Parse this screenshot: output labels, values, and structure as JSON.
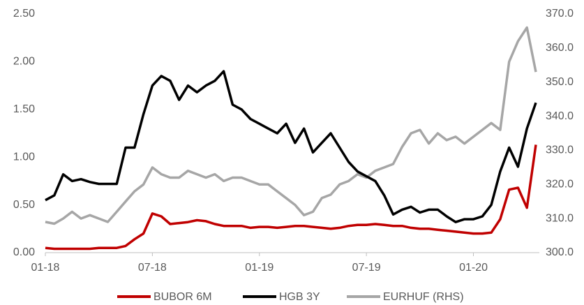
{
  "chart_data": {
    "type": "line",
    "categories": [
      "01-18",
      null,
      null,
      null,
      null,
      null,
      null,
      null,
      null,
      null,
      null,
      null,
      "07-18",
      null,
      null,
      null,
      null,
      null,
      null,
      null,
      null,
      null,
      null,
      null,
      "01-19",
      null,
      null,
      null,
      null,
      null,
      null,
      null,
      null,
      null,
      null,
      null,
      "07-19",
      null,
      null,
      null,
      null,
      null,
      null,
      null,
      null,
      null,
      null,
      null,
      "01-20",
      null,
      null,
      null,
      null,
      null,
      null,
      null
    ],
    "series": [
      {
        "name": "BUBOR 6M",
        "color": "#c00000",
        "values": [
          0.05,
          0.04,
          0.04,
          0.04,
          0.04,
          0.04,
          0.05,
          0.05,
          0.05,
          0.07,
          0.14,
          0.2,
          0.41,
          0.38,
          0.3,
          0.31,
          0.32,
          0.34,
          0.33,
          0.3,
          0.28,
          0.28,
          0.28,
          0.26,
          0.27,
          0.27,
          0.26,
          0.27,
          0.28,
          0.28,
          0.27,
          0.26,
          0.25,
          0.26,
          0.28,
          0.29,
          0.29,
          0.3,
          0.29,
          0.28,
          0.28,
          0.26,
          0.25,
          0.25,
          0.24,
          0.23,
          0.22,
          0.21,
          0.2,
          0.2,
          0.21,
          0.35,
          0.66,
          0.68,
          0.47,
          1.13
        ]
      },
      {
        "name": "HGB 3Y",
        "color": "#000000",
        "values": [
          0.55,
          0.6,
          0.82,
          0.75,
          0.77,
          0.74,
          0.72,
          0.72,
          0.72,
          1.1,
          1.1,
          1.45,
          1.75,
          1.85,
          1.8,
          1.6,
          1.75,
          1.68,
          1.75,
          1.8,
          1.9,
          1.55,
          1.5,
          1.4,
          1.35,
          1.3,
          1.25,
          1.35,
          1.15,
          1.3,
          1.05,
          1.15,
          1.25,
          1.1,
          0.95,
          0.85,
          0.8,
          0.75,
          0.6,
          0.4,
          0.45,
          0.48,
          0.42,
          0.45,
          0.45,
          0.38,
          0.32,
          0.35,
          0.35,
          0.38,
          0.5,
          0.85,
          1.1,
          0.9,
          1.3,
          1.57
        ]
      },
      {
        "name": "EURHUF (RHS)",
        "color": "#a6a6a6",
        "axis": "y2",
        "values": [
          309,
          308.5,
          310,
          312,
          310,
          311,
          310,
          309,
          312,
          315,
          318,
          320,
          325,
          323,
          322,
          322,
          324,
          323,
          322,
          323,
          321,
          322,
          322,
          321,
          320,
          320,
          318,
          316,
          314,
          311,
          312,
          316,
          317,
          320,
          321,
          323,
          322,
          324,
          325,
          326,
          331,
          335,
          336,
          332,
          335,
          333,
          334,
          332,
          334,
          336,
          338,
          336,
          356,
          362,
          366,
          353
        ]
      }
    ],
    "ylim": [
      0,
      2.5
    ],
    "yticks": [
      {
        "value": 0,
        "label": "0.00"
      },
      {
        "value": 0.5,
        "label": "0.50"
      },
      {
        "value": 1,
        "label": "1.00"
      },
      {
        "value": 1.5,
        "label": "1.50"
      },
      {
        "value": 2,
        "label": "2.00"
      },
      {
        "value": 2.5,
        "label": "2.50"
      }
    ],
    "y2lim": [
      300,
      370
    ],
    "y2ticks": [
      {
        "value": 300,
        "label": "300.0"
      },
      {
        "value": 310,
        "label": "310.0"
      },
      {
        "value": 320,
        "label": "320.0"
      },
      {
        "value": 330,
        "label": "330.0"
      },
      {
        "value": 340,
        "label": "340.0"
      },
      {
        "value": 350,
        "label": "350.0"
      },
      {
        "value": 360,
        "label": "360.0"
      },
      {
        "value": 370,
        "label": "370.0"
      }
    ],
    "grid": false,
    "legend": "bottom"
  }
}
